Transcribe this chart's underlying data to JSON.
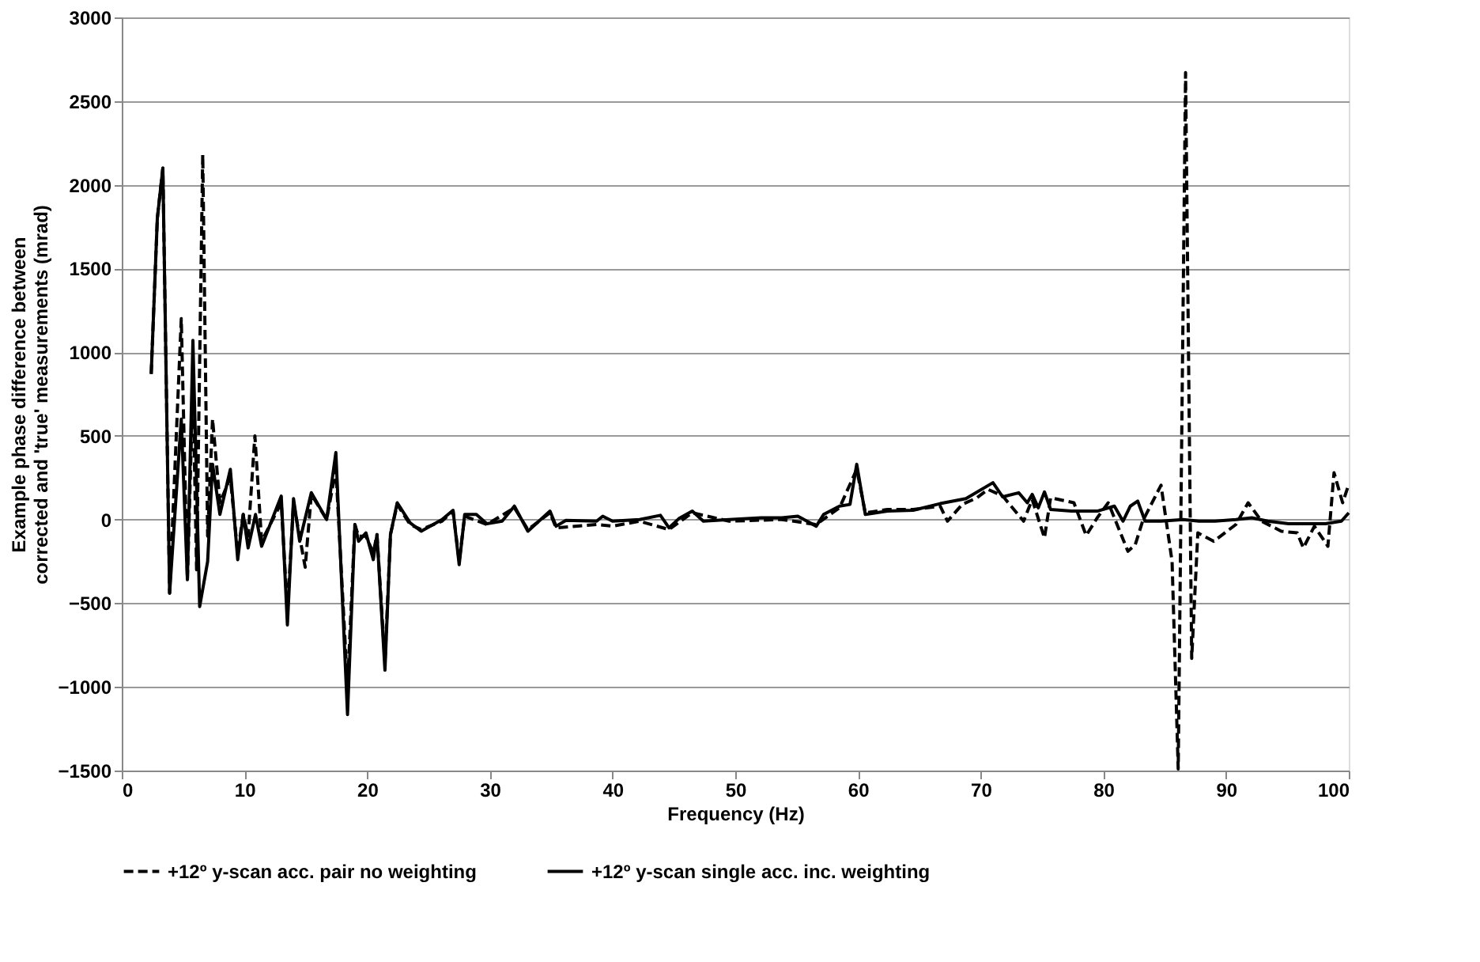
{
  "chart_data": {
    "type": "line",
    "xlabel": "Frequency (Hz)",
    "ylabel": "Example phase difference between\ncorrected and 'true' measurements (mrad)",
    "xlim": [
      0,
      100
    ],
    "xticks": [
      0,
      10,
      20,
      30,
      40,
      50,
      60,
      70,
      80,
      90,
      100
    ],
    "ylim": [
      -1500,
      3000
    ],
    "yticks": [
      -1500,
      -1000,
      -500,
      0,
      500,
      1000,
      1500,
      2000,
      2500,
      3000
    ],
    "grid": "y",
    "legend": "bottom",
    "marker": "none",
    "series": [
      {
        "name": "+12º y-scan acc. pair no weighting",
        "color": "#000000",
        "line_style": "dashed",
        "x": [
          2.4,
          2.9,
          3.35,
          3.9,
          4.85,
          5.35,
          5.8,
          6.1,
          6.6,
          7.0,
          7.4,
          8.0,
          8.85,
          9.45,
          9.9,
          10.3,
          10.85,
          11.4,
          13.0,
          13.5,
          14.0,
          14.95,
          15.45,
          16.7,
          17.45,
          18.4,
          19.0,
          19.3,
          19.9,
          20.5,
          20.8,
          21.45,
          21.9,
          22.45,
          23.5,
          24.4,
          26.1,
          27.0,
          27.5,
          27.95,
          29.75,
          32.0,
          33.1,
          34.9,
          35.4,
          38.7,
          40.0,
          42.2,
          44.6,
          46.5,
          49.5,
          53.8,
          56.6,
          58.5,
          59.9,
          60.6,
          62.4,
          64.5,
          66.7,
          67.3,
          68.5,
          69.7,
          70.6,
          71.8,
          73.5,
          74.2,
          75.2,
          75.7,
          77.6,
          78.6,
          79.5,
          80.4,
          82.0,
          82.6,
          83.2,
          84.7,
          85.6,
          86.1,
          86.7,
          87.2,
          87.7,
          89.0,
          90.8,
          91.8,
          92.9,
          94.5,
          95.8,
          96.3,
          97.2,
          98.3,
          98.8,
          99.5,
          100
        ],
        "values": [
          870,
          1800,
          2100,
          -440,
          1200,
          -360,
          800,
          -300,
          2180,
          -100,
          600,
          100,
          250,
          -200,
          30,
          -100,
          500,
          -130,
          100,
          -550,
          100,
          -285,
          150,
          0,
          300,
          -1000,
          -30,
          -100,
          -100,
          -200,
          -90,
          -850,
          -90,
          90,
          -30,
          -60,
          -10,
          50,
          -250,
          20,
          -30,
          70,
          -60,
          40,
          -50,
          -30,
          -40,
          -10,
          -60,
          40,
          -10,
          0,
          -30,
          70,
          300,
          40,
          60,
          60,
          80,
          -10,
          90,
          130,
          180,
          140,
          -10,
          120,
          -110,
          130,
          100,
          -95,
          10,
          100,
          -190,
          -150,
          -10,
          205,
          -250,
          -1490,
          2670,
          -830,
          -80,
          -130,
          -30,
          100,
          -10,
          -70,
          -80,
          -170,
          -40,
          -160,
          280,
          100,
          210
        ]
      },
      {
        "name": "+12º y-scan single acc. inc. weighting",
        "color": "#000000",
        "line_style": "solid",
        "x": [
          2.4,
          2.9,
          3.35,
          3.9,
          4.85,
          5.35,
          5.8,
          6.35,
          7.0,
          7.4,
          8.0,
          8.85,
          9.45,
          9.9,
          10.3,
          10.9,
          11.4,
          13.0,
          13.5,
          14.0,
          14.5,
          15.45,
          16.7,
          17.45,
          18.4,
          19.0,
          19.3,
          19.9,
          20.5,
          20.8,
          21.45,
          21.9,
          22.45,
          23.5,
          24.4,
          26.1,
          27.0,
          27.5,
          27.95,
          28.9,
          29.75,
          31.0,
          32.0,
          33.1,
          34.0,
          34.9,
          35.4,
          36.2,
          38.7,
          39.2,
          40.0,
          42.2,
          43.9,
          44.6,
          45.4,
          46.5,
          47.4,
          49.5,
          52.1,
          53.8,
          55.1,
          56.6,
          57.2,
          58.5,
          59.35,
          59.9,
          60.2,
          60.6,
          62.4,
          64.5,
          66.7,
          68.8,
          71.0,
          71.8,
          73.1,
          73.8,
          74.2,
          74.7,
          75.2,
          75.7,
          77.4,
          79.5,
          80.9,
          81.6,
          82.2,
          82.8,
          83.4,
          84.7,
          86.5,
          87.8,
          89.1,
          90.8,
          92.1,
          93.4,
          95.1,
          96.8,
          98.1,
          99.4,
          100
        ],
        "values": [
          870,
          1800,
          2100,
          -440,
          600,
          -360,
          1070,
          -520,
          -250,
          330,
          30,
          300,
          -240,
          30,
          -170,
          30,
          -160,
          140,
          -630,
          125,
          -130,
          160,
          0,
          400,
          -1165,
          -30,
          -130,
          -80,
          -240,
          -90,
          -900,
          -90,
          100,
          -20,
          -70,
          0,
          55,
          -270,
          30,
          30,
          -25,
          -10,
          80,
          -70,
          -10,
          50,
          -40,
          -5,
          -10,
          20,
          -10,
          0,
          25,
          -50,
          5,
          50,
          -10,
          0,
          10,
          10,
          20,
          -40,
          30,
          80,
          90,
          330,
          200,
          30,
          50,
          55,
          95,
          125,
          220,
          135,
          160,
          100,
          150,
          70,
          165,
          60,
          50,
          50,
          80,
          -10,
          80,
          110,
          -10,
          -10,
          0,
          -10,
          -10,
          0,
          10,
          -10,
          -25,
          -25,
          -25,
          -10,
          40
        ]
      }
    ]
  }
}
